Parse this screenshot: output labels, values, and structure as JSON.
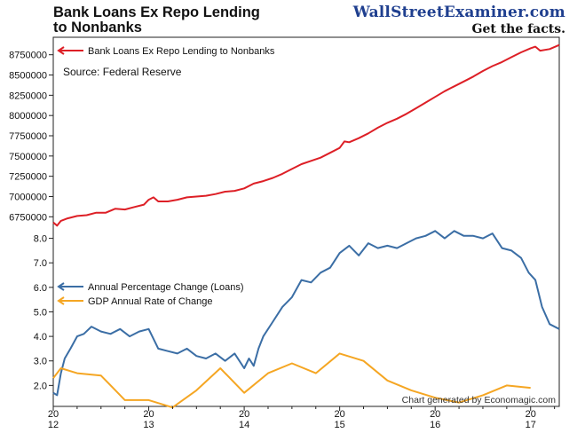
{
  "page": {
    "title_line1": "Bank Loans Ex Repo Lending",
    "title_line2": "to Nonbanks",
    "brand_name": "WallStreetExaminer.com",
    "brand_tagline": "Get the facts.",
    "credit": "Chart generated by Economagic.com"
  },
  "chart_data": [
    {
      "type": "line",
      "title": "Bank Loans Ex Repo Lending to Nonbanks",
      "source_note": "Source: Federal Reserve",
      "xlabel": "",
      "ylabel": "",
      "ylim": [
        6600000,
        8900000
      ],
      "yticks": [
        6750000,
        7000000,
        7250000,
        7500000,
        7750000,
        8000000,
        8250000,
        8500000,
        8750000
      ],
      "legend_position": "top-left",
      "grid": false,
      "series": [
        {
          "name": "Bank Loans Ex Repo Lending to Nonbanks",
          "color": "#dd1f26",
          "x": [
            2012.0,
            2012.04,
            2012.08,
            2012.15,
            2012.25,
            2012.35,
            2012.45,
            2012.55,
            2012.65,
            2012.75,
            2012.85,
            2012.95,
            2013.0,
            2013.05,
            2013.1,
            2013.2,
            2013.3,
            2013.4,
            2013.5,
            2013.6,
            2013.7,
            2013.8,
            2013.9,
            2014.0,
            2014.1,
            2014.2,
            2014.3,
            2014.4,
            2014.5,
            2014.6,
            2014.7,
            2014.8,
            2014.9,
            2015.0,
            2015.05,
            2015.1,
            2015.2,
            2015.3,
            2015.4,
            2015.5,
            2015.6,
            2015.7,
            2015.8,
            2015.9,
            2016.0,
            2016.1,
            2016.2,
            2016.3,
            2016.4,
            2016.5,
            2016.6,
            2016.7,
            2016.8,
            2016.9,
            2017.0,
            2017.05,
            2017.1,
            2017.2,
            2017.3
          ],
          "values": [
            6680000,
            6640000,
            6700000,
            6730000,
            6760000,
            6770000,
            6800000,
            6800000,
            6850000,
            6840000,
            6870000,
            6900000,
            6960000,
            6990000,
            6940000,
            6940000,
            6960000,
            6990000,
            7000000,
            7010000,
            7030000,
            7060000,
            7070000,
            7100000,
            7160000,
            7190000,
            7230000,
            7280000,
            7340000,
            7400000,
            7440000,
            7480000,
            7540000,
            7600000,
            7680000,
            7670000,
            7720000,
            7780000,
            7850000,
            7910000,
            7960000,
            8020000,
            8090000,
            8160000,
            8230000,
            8300000,
            8360000,
            8420000,
            8480000,
            8550000,
            8610000,
            8660000,
            8720000,
            8780000,
            8830000,
            8850000,
            8800000,
            8820000,
            8870000
          ]
        }
      ]
    },
    {
      "type": "line",
      "title": "",
      "xlabel": "",
      "ylabel": "",
      "ylim": [
        1.0,
        8.6
      ],
      "yticks": [
        2.0,
        3.0,
        4.0,
        5.0,
        6.0,
        7.0,
        8.0
      ],
      "xlim": [
        2012.0,
        2017.3
      ],
      "xticks": [
        2012,
        2013,
        2014,
        2015,
        2016,
        2017
      ],
      "xtick_labels": [
        [
          "20",
          "12"
        ],
        [
          "20",
          "13"
        ],
        [
          "20",
          "14"
        ],
        [
          "20",
          "15"
        ],
        [
          "20",
          "16"
        ],
        [
          "20",
          "17"
        ]
      ],
      "legend_position": "center-left",
      "grid": false,
      "series": [
        {
          "name": "Annual Percentage Change (Loans)",
          "color": "#3b6ea5",
          "x": [
            2012.0,
            2012.04,
            2012.08,
            2012.12,
            2012.18,
            2012.25,
            2012.32,
            2012.4,
            2012.5,
            2012.6,
            2012.7,
            2012.8,
            2012.9,
            2013.0,
            2013.1,
            2013.2,
            2013.3,
            2013.4,
            2013.5,
            2013.6,
            2013.7,
            2013.8,
            2013.9,
            2014.0,
            2014.05,
            2014.1,
            2014.15,
            2014.2,
            2014.3,
            2014.4,
            2014.5,
            2014.6,
            2014.7,
            2014.8,
            2014.9,
            2015.0,
            2015.1,
            2015.2,
            2015.3,
            2015.4,
            2015.5,
            2015.6,
            2015.7,
            2015.8,
            2015.9,
            2016.0,
            2016.1,
            2016.2,
            2016.3,
            2016.4,
            2016.5,
            2016.6,
            2016.7,
            2016.8,
            2016.9,
            2016.98,
            2017.05,
            2017.12,
            2017.2,
            2017.3
          ],
          "values": [
            1.7,
            1.6,
            2.5,
            3.1,
            3.5,
            4.0,
            4.1,
            4.4,
            4.2,
            4.1,
            4.3,
            4.0,
            4.2,
            4.3,
            3.5,
            3.4,
            3.3,
            3.5,
            3.2,
            3.1,
            3.3,
            3.0,
            3.3,
            2.7,
            3.1,
            2.8,
            3.5,
            4.0,
            4.6,
            5.2,
            5.6,
            6.3,
            6.2,
            6.6,
            6.8,
            7.4,
            7.7,
            7.3,
            7.8,
            7.6,
            7.7,
            7.6,
            7.8,
            8.0,
            8.1,
            8.3,
            8.0,
            8.3,
            8.1,
            8.1,
            8.0,
            8.2,
            7.6,
            7.5,
            7.2,
            6.6,
            6.3,
            5.2,
            4.5,
            4.3
          ]
        },
        {
          "name": "GDP Annual Rate of Change",
          "color": "#f5a623",
          "x": [
            2012.0,
            2012.08,
            2012.25,
            2012.5,
            2012.75,
            2013.0,
            2013.25,
            2013.5,
            2013.75,
            2014.0,
            2014.25,
            2014.5,
            2014.75,
            2015.0,
            2015.25,
            2015.5,
            2015.75,
            2016.0,
            2016.25,
            2016.5,
            2016.75,
            2017.0
          ],
          "values": [
            2.3,
            2.7,
            2.5,
            2.4,
            1.4,
            1.4,
            1.1,
            1.8,
            2.7,
            1.7,
            2.5,
            2.9,
            2.5,
            3.3,
            3.0,
            2.2,
            1.8,
            1.5,
            1.3,
            1.6,
            2.0,
            1.9
          ]
        }
      ]
    }
  ]
}
